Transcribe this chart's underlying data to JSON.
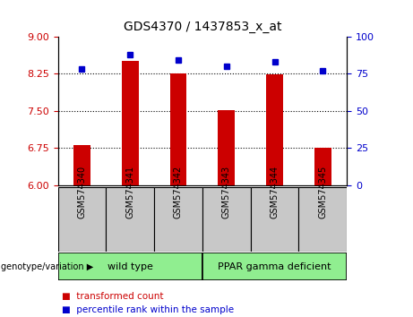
{
  "title": "GDS4370 / 1437853_x_at",
  "samples": [
    "GSM574340",
    "GSM574341",
    "GSM574342",
    "GSM574343",
    "GSM574344",
    "GSM574345"
  ],
  "bar_values": [
    6.82,
    8.5,
    8.25,
    7.52,
    8.24,
    6.75
  ],
  "dot_values": [
    78,
    88,
    84,
    80,
    83,
    77
  ],
  "bar_color": "#cc0000",
  "dot_color": "#0000cc",
  "ylim_left": [
    6,
    9
  ],
  "ylim_right": [
    0,
    100
  ],
  "yticks_left": [
    6,
    6.75,
    7.5,
    8.25,
    9
  ],
  "yticks_right": [
    0,
    25,
    50,
    75,
    100
  ],
  "hlines": [
    6.75,
    7.5,
    8.25
  ],
  "legend_items": [
    {
      "label": "transformed count",
      "color": "#cc0000"
    },
    {
      "label": "percentile rank within the sample",
      "color": "#0000cc"
    }
  ],
  "bar_width": 0.35,
  "background_color": "#ffffff",
  "tick_color_left": "#cc0000",
  "tick_color_right": "#0000cc",
  "sample_area_color": "#c8c8c8",
  "group_area_color": "#90ee90",
  "group_defs": [
    {
      "start": 0,
      "end": 2,
      "label": "wild type"
    },
    {
      "start": 3,
      "end": 5,
      "label": "PPAR gamma deficient"
    }
  ]
}
